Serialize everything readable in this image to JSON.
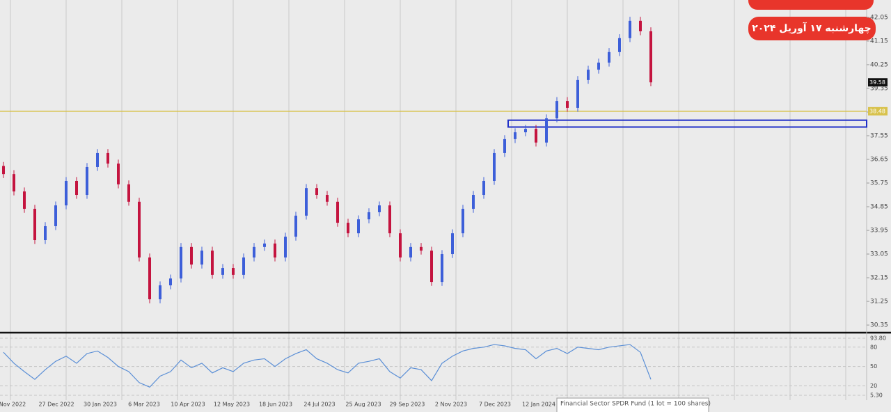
{
  "chart_data": [
    {
      "type": "candlestick",
      "open": [
        36.4,
        36.09,
        35.43,
        34.77,
        33.58,
        34.11,
        34.9,
        35.83,
        35.3,
        36.36,
        36.89,
        36.49,
        35.7,
        35.04,
        32.92,
        31.33,
        31.86,
        32.12,
        33.32,
        32.65,
        33.18,
        32.26,
        32.52,
        32.26,
        32.92,
        33.32,
        33.45,
        32.92,
        33.71,
        34.51,
        35.56,
        35.3,
        35.04,
        34.24,
        33.84,
        34.37,
        34.64,
        34.9,
        33.84,
        32.92,
        33.32,
        33.18,
        31.99,
        33.05,
        33.84,
        34.77,
        35.3,
        35.83,
        36.89,
        37.42,
        37.68,
        37.81,
        37.29,
        38.21,
        38.87,
        38.61,
        39.67,
        40.06,
        40.33,
        40.73,
        41.26,
        41.92,
        41.52
      ],
      "high": [
        36.55,
        36.24,
        35.58,
        34.92,
        34.26,
        35.05,
        35.98,
        35.98,
        36.51,
        37.04,
        37.04,
        36.64,
        35.85,
        35.19,
        33.07,
        32.01,
        32.27,
        33.47,
        33.47,
        33.33,
        33.33,
        32.67,
        32.67,
        33.07,
        33.47,
        33.6,
        33.6,
        33.86,
        34.66,
        35.71,
        35.71,
        35.45,
        35.19,
        34.39,
        34.52,
        34.79,
        35.05,
        35.05,
        33.99,
        33.47,
        33.47,
        33.33,
        33.2,
        33.99,
        34.92,
        35.45,
        35.98,
        37.04,
        37.57,
        37.83,
        37.96,
        37.96,
        38.36,
        39.02,
        39.02,
        39.82,
        40.21,
        40.48,
        40.88,
        41.41,
        42.07,
        42.07,
        41.67
      ],
      "low": [
        35.94,
        35.28,
        34.62,
        33.43,
        33.43,
        33.96,
        34.75,
        35.15,
        35.15,
        36.21,
        36.34,
        35.55,
        34.89,
        32.77,
        31.18,
        31.18,
        31.71,
        31.97,
        32.5,
        32.5,
        32.11,
        32.11,
        32.11,
        32.11,
        32.77,
        33.17,
        32.77,
        32.77,
        33.56,
        34.36,
        35.15,
        34.89,
        34.09,
        33.69,
        33.69,
        34.22,
        34.49,
        33.69,
        32.77,
        32.77,
        33.03,
        31.84,
        31.84,
        32.9,
        33.69,
        34.62,
        35.15,
        35.68,
        36.74,
        37.27,
        37.53,
        37.14,
        37.14,
        38.06,
        38.46,
        38.46,
        39.52,
        39.91,
        40.18,
        40.58,
        41.11,
        41.37,
        39.43
      ],
      "close": [
        36.09,
        35.43,
        34.77,
        33.58,
        34.11,
        34.9,
        35.83,
        35.3,
        36.36,
        36.89,
        36.49,
        35.7,
        35.04,
        32.92,
        31.33,
        31.86,
        32.12,
        33.32,
        32.65,
        33.18,
        32.26,
        32.52,
        32.26,
        32.92,
        33.32,
        33.45,
        32.92,
        33.71,
        34.51,
        35.56,
        35.3,
        35.04,
        34.24,
        33.84,
        34.37,
        34.64,
        34.9,
        33.84,
        32.92,
        33.32,
        33.18,
        31.99,
        33.05,
        33.84,
        34.77,
        35.3,
        35.83,
        36.89,
        37.42,
        37.68,
        37.81,
        37.29,
        38.21,
        38.87,
        38.61,
        39.67,
        40.06,
        40.33,
        40.73,
        41.26,
        41.92,
        41.52,
        39.58
      ],
      "up_color": "#3d5fd9",
      "down_color": "#c4143f",
      "ylim": [
        30.14,
        42.71
      ],
      "yticks": [
        42.05,
        41.15,
        40.25,
        39.35,
        38.45,
        37.55,
        36.65,
        35.75,
        34.85,
        33.95,
        33.05,
        32.15,
        31.25,
        30.35
      ],
      "level_line": {
        "value": 38.48,
        "color": "#d8c24c"
      },
      "zone": {
        "top": 38.14,
        "bottom": 37.88,
        "color": "#1f2fc8"
      },
      "xtick_labels": [
        "Nov 2022",
        "27 Dec 2022",
        "30 Jan 2023",
        "6 Mar 2023",
        "10 Apr 2023",
        "12 May 2023",
        "18 Jun 2023",
        "24 Jul 2023",
        "25 Aug 2023",
        "29 Sep 2023",
        "2 Nov 2023",
        "7 Dec 2023",
        "12 Jan 2024"
      ]
    },
    {
      "type": "line",
      "color": "#5b8fd6",
      "values": [
        72,
        55,
        42,
        30,
        45,
        58,
        66,
        55,
        70,
        74,
        64,
        50,
        42,
        25,
        18,
        35,
        42,
        60,
        48,
        55,
        40,
        48,
        42,
        55,
        60,
        62,
        50,
        62,
        70,
        76,
        62,
        55,
        45,
        40,
        55,
        58,
        62,
        42,
        32,
        48,
        45,
        28,
        55,
        66,
        74,
        78,
        80,
        84,
        82,
        78,
        76,
        62,
        74,
        78,
        70,
        80,
        78,
        76,
        80,
        82,
        84,
        72,
        30
      ],
      "ylim": [
        5.3,
        93.8
      ],
      "yticks": [
        {
          "value": 93.8,
          "label": "93.80"
        },
        80,
        50,
        20,
        {
          "value": 5.3,
          "label": "5.30"
        }
      ],
      "grid": true
    }
  ],
  "badge": {
    "date": "چهارشنبه ۱۷ آوریل ۲۰۲۴"
  },
  "tooltip": {
    "text": "Financial Sector SPDR Fund  (1 lot = 100 shares)"
  }
}
